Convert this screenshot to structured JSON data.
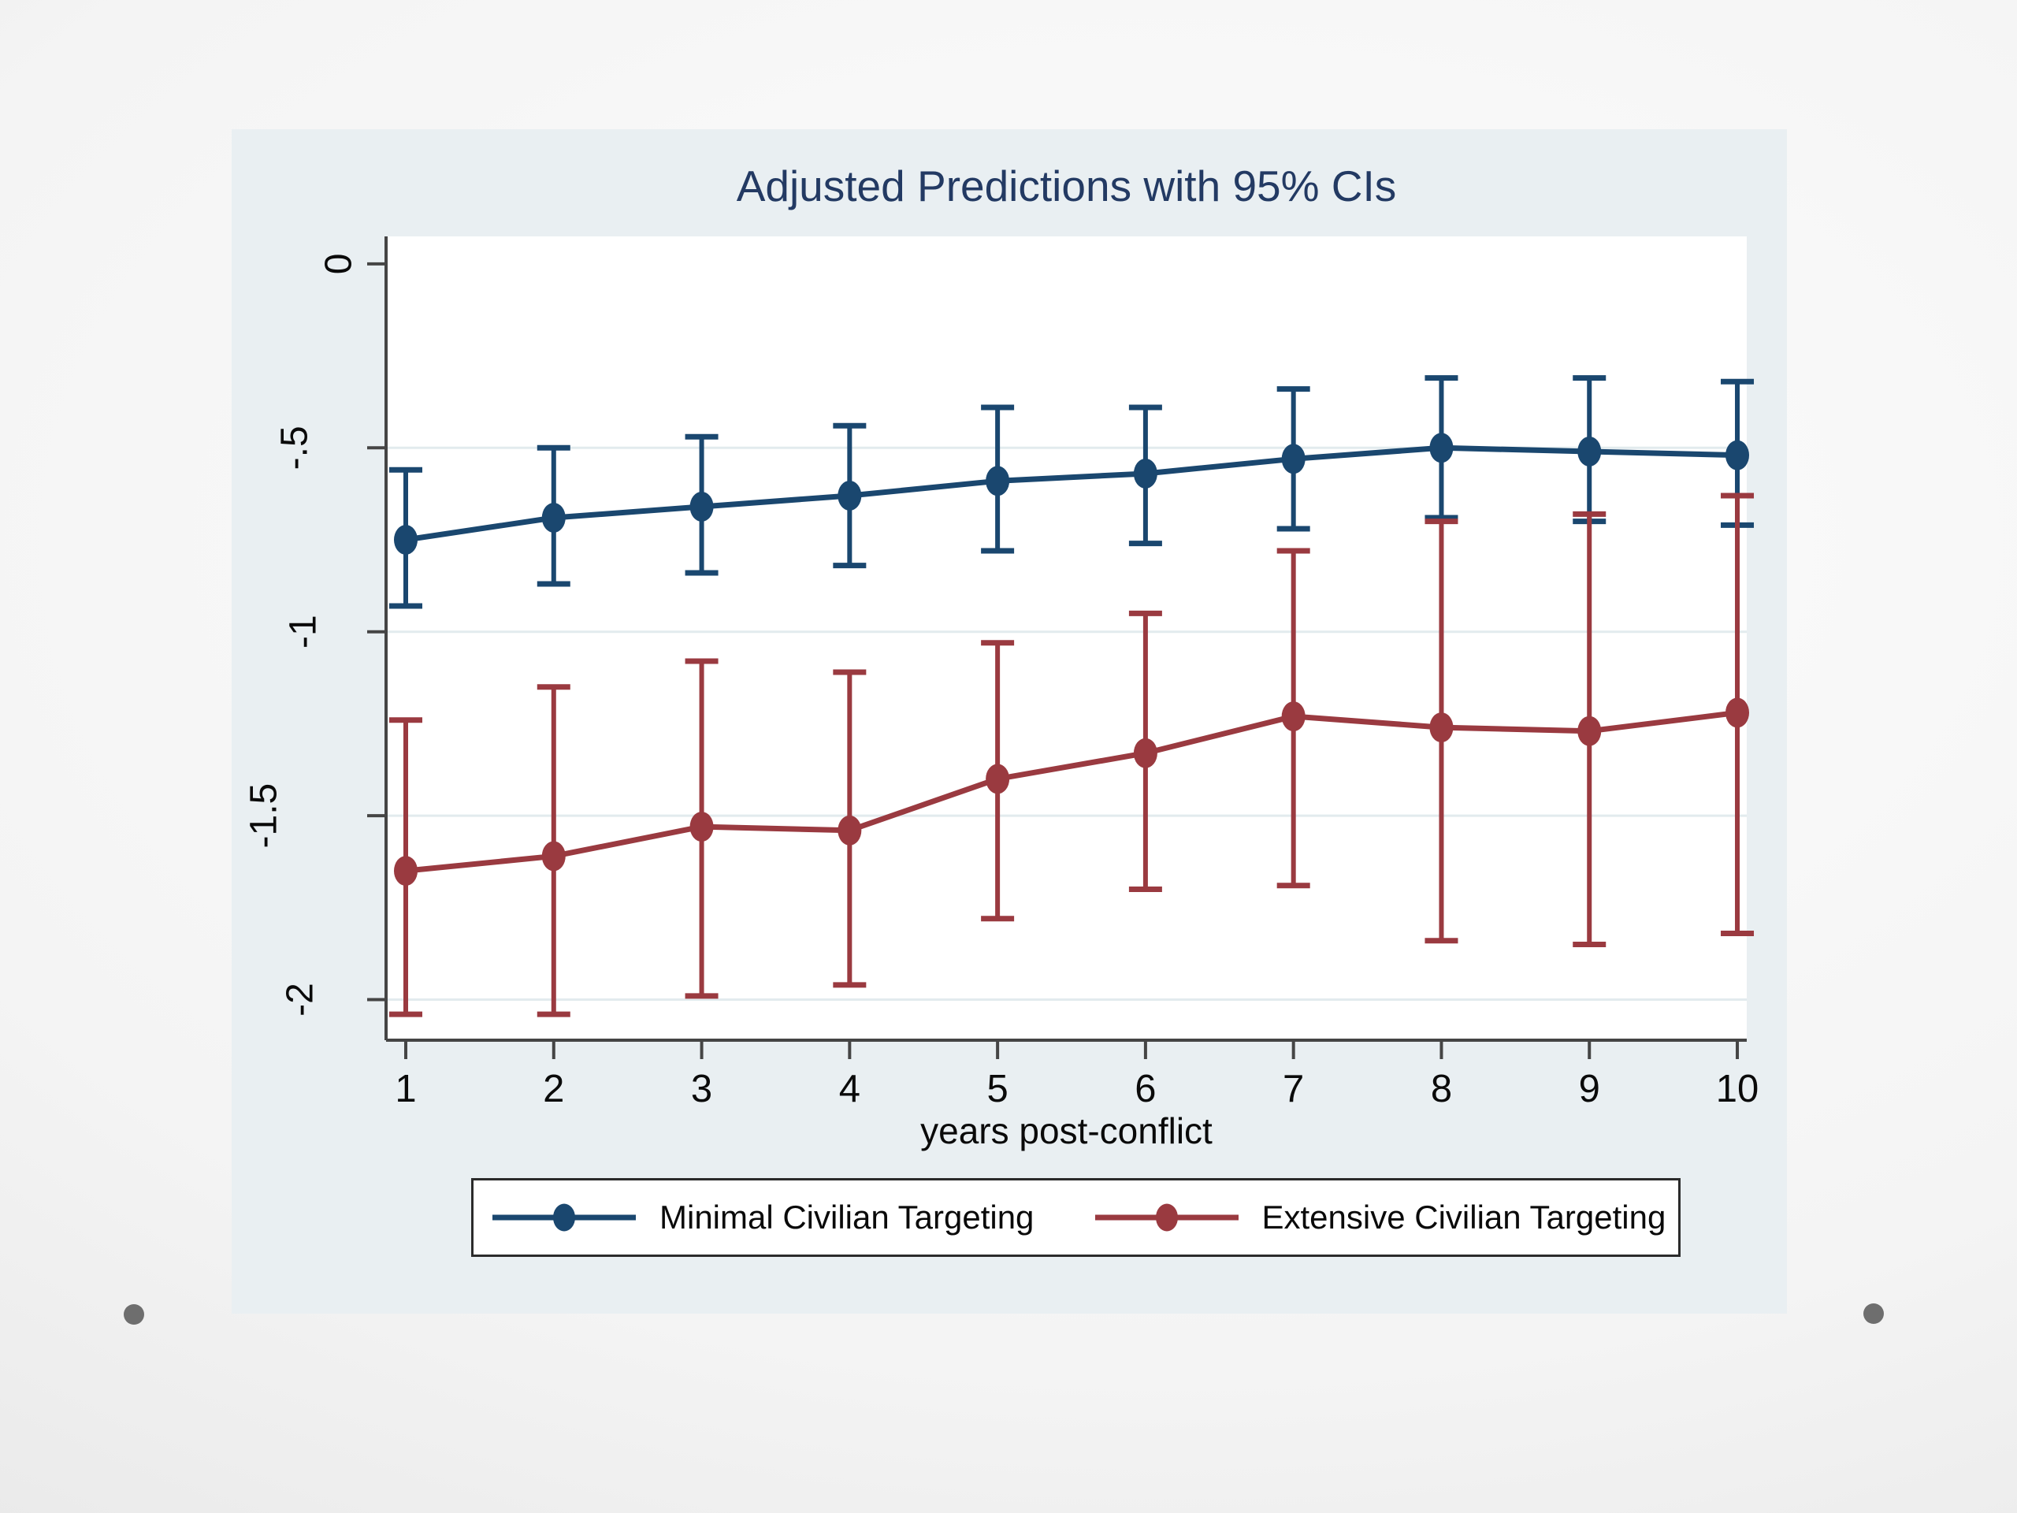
{
  "chart_data": {
    "type": "line",
    "title": "Adjusted Predictions with 95% CIs",
    "xlabel": "years post-conflict",
    "x": [
      1,
      2,
      3,
      4,
      5,
      6,
      7,
      8,
      9,
      10
    ],
    "x_tick_labels": [
      "1",
      "2",
      "3",
      "4",
      "5",
      "6",
      "7",
      "8",
      "9",
      "10"
    ],
    "y_ticks": {
      "labels": [
        "0",
        "-.5",
        "-1",
        "-1.5",
        "-2"
      ],
      "values": [
        0,
        -0.5,
        -1,
        -1.5,
        -2
      ]
    },
    "xlim": [
      0.87,
      10.06
    ],
    "ylim": [
      -2.11,
      0.075
    ],
    "grid": "horizontal gridlines at y ticks -.5, -1, -1.5, -2",
    "legend_position": "bottom",
    "error_bars": "95% confidence intervals with caps",
    "series": [
      {
        "name": "Minimal Civilian Targeting",
        "color": "#1a476f",
        "values": [
          -0.75,
          -0.69,
          -0.66,
          -0.63,
          -0.59,
          -0.57,
          -0.53,
          -0.5,
          -0.51,
          -0.52
        ],
        "ci_high": [
          -0.56,
          -0.5,
          -0.47,
          -0.44,
          -0.39,
          -0.39,
          -0.34,
          -0.31,
          -0.31,
          -0.32
        ],
        "ci_low": [
          -0.93,
          -0.87,
          -0.84,
          -0.82,
          -0.78,
          -0.76,
          -0.72,
          -0.69,
          -0.7,
          -0.71
        ]
      },
      {
        "name": "Extensive Civilian Targeting",
        "color": "#9a3a40",
        "values": [
          -1.65,
          -1.61,
          -1.53,
          -1.54,
          -1.4,
          -1.33,
          -1.23,
          -1.26,
          -1.27,
          -1.22
        ],
        "ci_high": [
          -1.24,
          -1.15,
          -1.08,
          -1.11,
          -1.03,
          -0.95,
          -0.78,
          -0.7,
          -0.68,
          -0.63
        ],
        "ci_low": [
          -2.04,
          -2.04,
          -1.99,
          -1.96,
          -1.78,
          -1.7,
          -1.69,
          -1.84,
          -1.85,
          -1.82
        ]
      }
    ]
  },
  "colors": {
    "slide_dot": "#6e6e6e",
    "panel_bg": "#e9eff2",
    "plot_bg": "#ffffff",
    "axis": "#454545",
    "grid": "#e2ebee",
    "title": "#233a63",
    "tick_text": "#0a0a0a",
    "legend_border": "#2b2b2b"
  }
}
